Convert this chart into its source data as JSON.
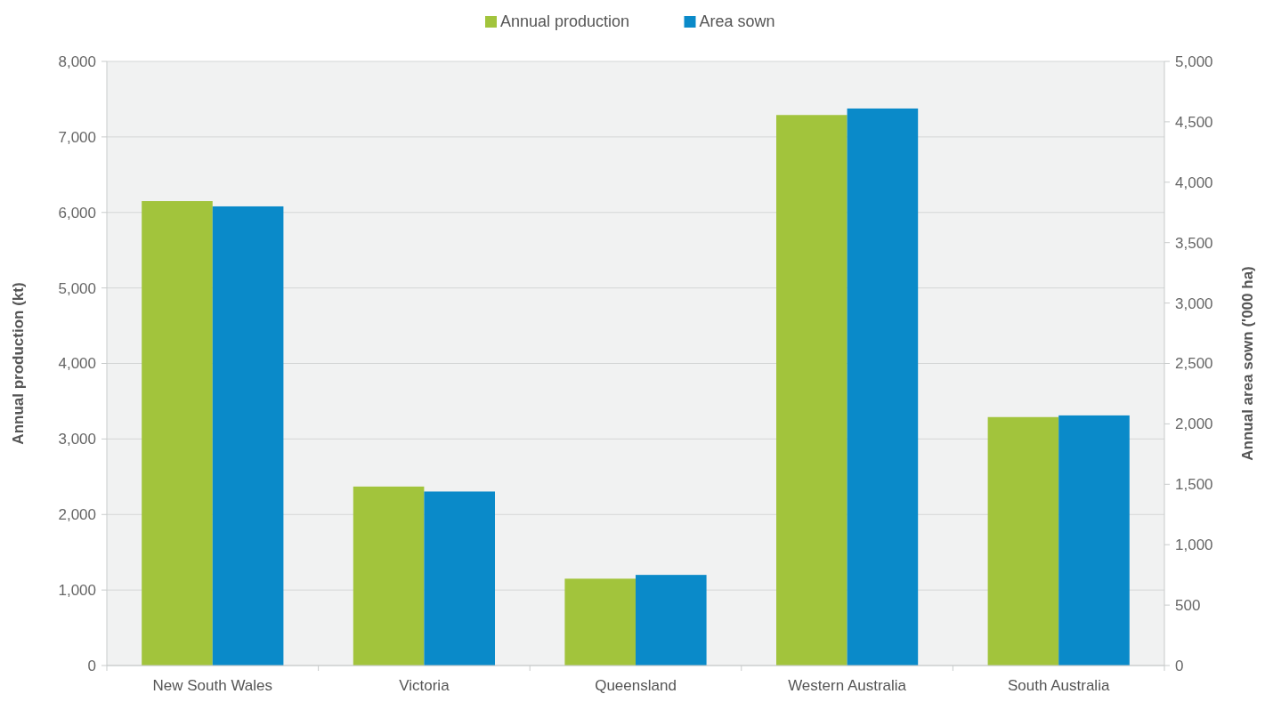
{
  "chart_data": {
    "type": "bar",
    "categories": [
      "New South Wales",
      "Victoria",
      "Queensland",
      "Western Australia",
      "South Australia"
    ],
    "series": [
      {
        "name": "Annual production",
        "color": "#a2c43c",
        "values": [
          6150,
          2370,
          1150,
          7290,
          3290
        ]
      },
      {
        "name": "Area sown",
        "color": "#0a8ac9",
        "axis": "y2",
        "values": [
          3800,
          1440,
          750,
          4610,
          2070
        ]
      }
    ],
    "ylabel": "Annual production (kt)",
    "y2label": "Annual area sown ('000 ha)",
    "ylim": [
      0,
      8000
    ],
    "yticks": [
      {
        "value": 0,
        "label": "0"
      },
      {
        "value": 1000,
        "label": "1,000"
      },
      {
        "value": 2000,
        "label": "2,000"
      },
      {
        "value": 3000,
        "label": "3,000"
      },
      {
        "value": 4000,
        "label": "4,000"
      },
      {
        "value": 5000,
        "label": "5,000"
      },
      {
        "value": 6000,
        "label": "6,000"
      },
      {
        "value": 7000,
        "label": "7,000"
      },
      {
        "value": 8000,
        "label": "8,000"
      }
    ],
    "y2lim": [
      0,
      5000
    ],
    "y2ticks": [
      {
        "value": 0,
        "label": "0"
      },
      {
        "value": 500,
        "label": "500"
      },
      {
        "value": 1000,
        "label": "1,000"
      },
      {
        "value": 1500,
        "label": "1,500"
      },
      {
        "value": 2000,
        "label": "2,000"
      },
      {
        "value": 2500,
        "label": "2,500"
      },
      {
        "value": 3000,
        "label": "3,000"
      },
      {
        "value": 3500,
        "label": "3,500"
      },
      {
        "value": 4000,
        "label": "4,000"
      },
      {
        "value": 4500,
        "label": "4,500"
      },
      {
        "value": 5000,
        "label": "5,000"
      }
    ],
    "grid": "y",
    "legend": "top"
  }
}
